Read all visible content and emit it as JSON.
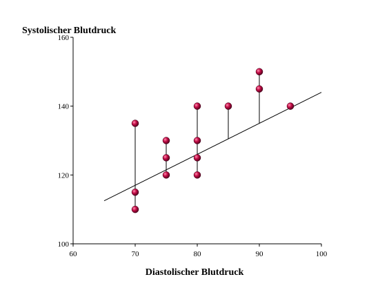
{
  "chart_data": {
    "type": "scatter",
    "title": "",
    "xlabel": "Diastolischer Blutdruck",
    "ylabel": "Systolischer Blutdruck",
    "xlim": [
      60,
      100
    ],
    "ylim": [
      100,
      160
    ],
    "xticks": [
      "60",
      "70",
      "80",
      "90",
      "100"
    ],
    "yticks": [
      "100",
      "120",
      "140",
      "160"
    ],
    "grid": false,
    "legend": "none",
    "point_color": "#b0003a",
    "line_color": "#000000",
    "points": [
      {
        "x": 70,
        "y": 135
      },
      {
        "x": 70,
        "y": 115
      },
      {
        "x": 70,
        "y": 110
      },
      {
        "x": 75,
        "y": 130
      },
      {
        "x": 75,
        "y": 125
      },
      {
        "x": 75,
        "y": 120
      },
      {
        "x": 80,
        "y": 140
      },
      {
        "x": 80,
        "y": 130
      },
      {
        "x": 80,
        "y": 125
      },
      {
        "x": 80,
        "y": 120
      },
      {
        "x": 85,
        "y": 140
      },
      {
        "x": 90,
        "y": 150
      },
      {
        "x": 90,
        "y": 145
      },
      {
        "x": 95,
        "y": 140
      }
    ],
    "regression": {
      "x_start": 65,
      "x_end": 100,
      "slope": 0.9,
      "intercept": 54
    }
  }
}
